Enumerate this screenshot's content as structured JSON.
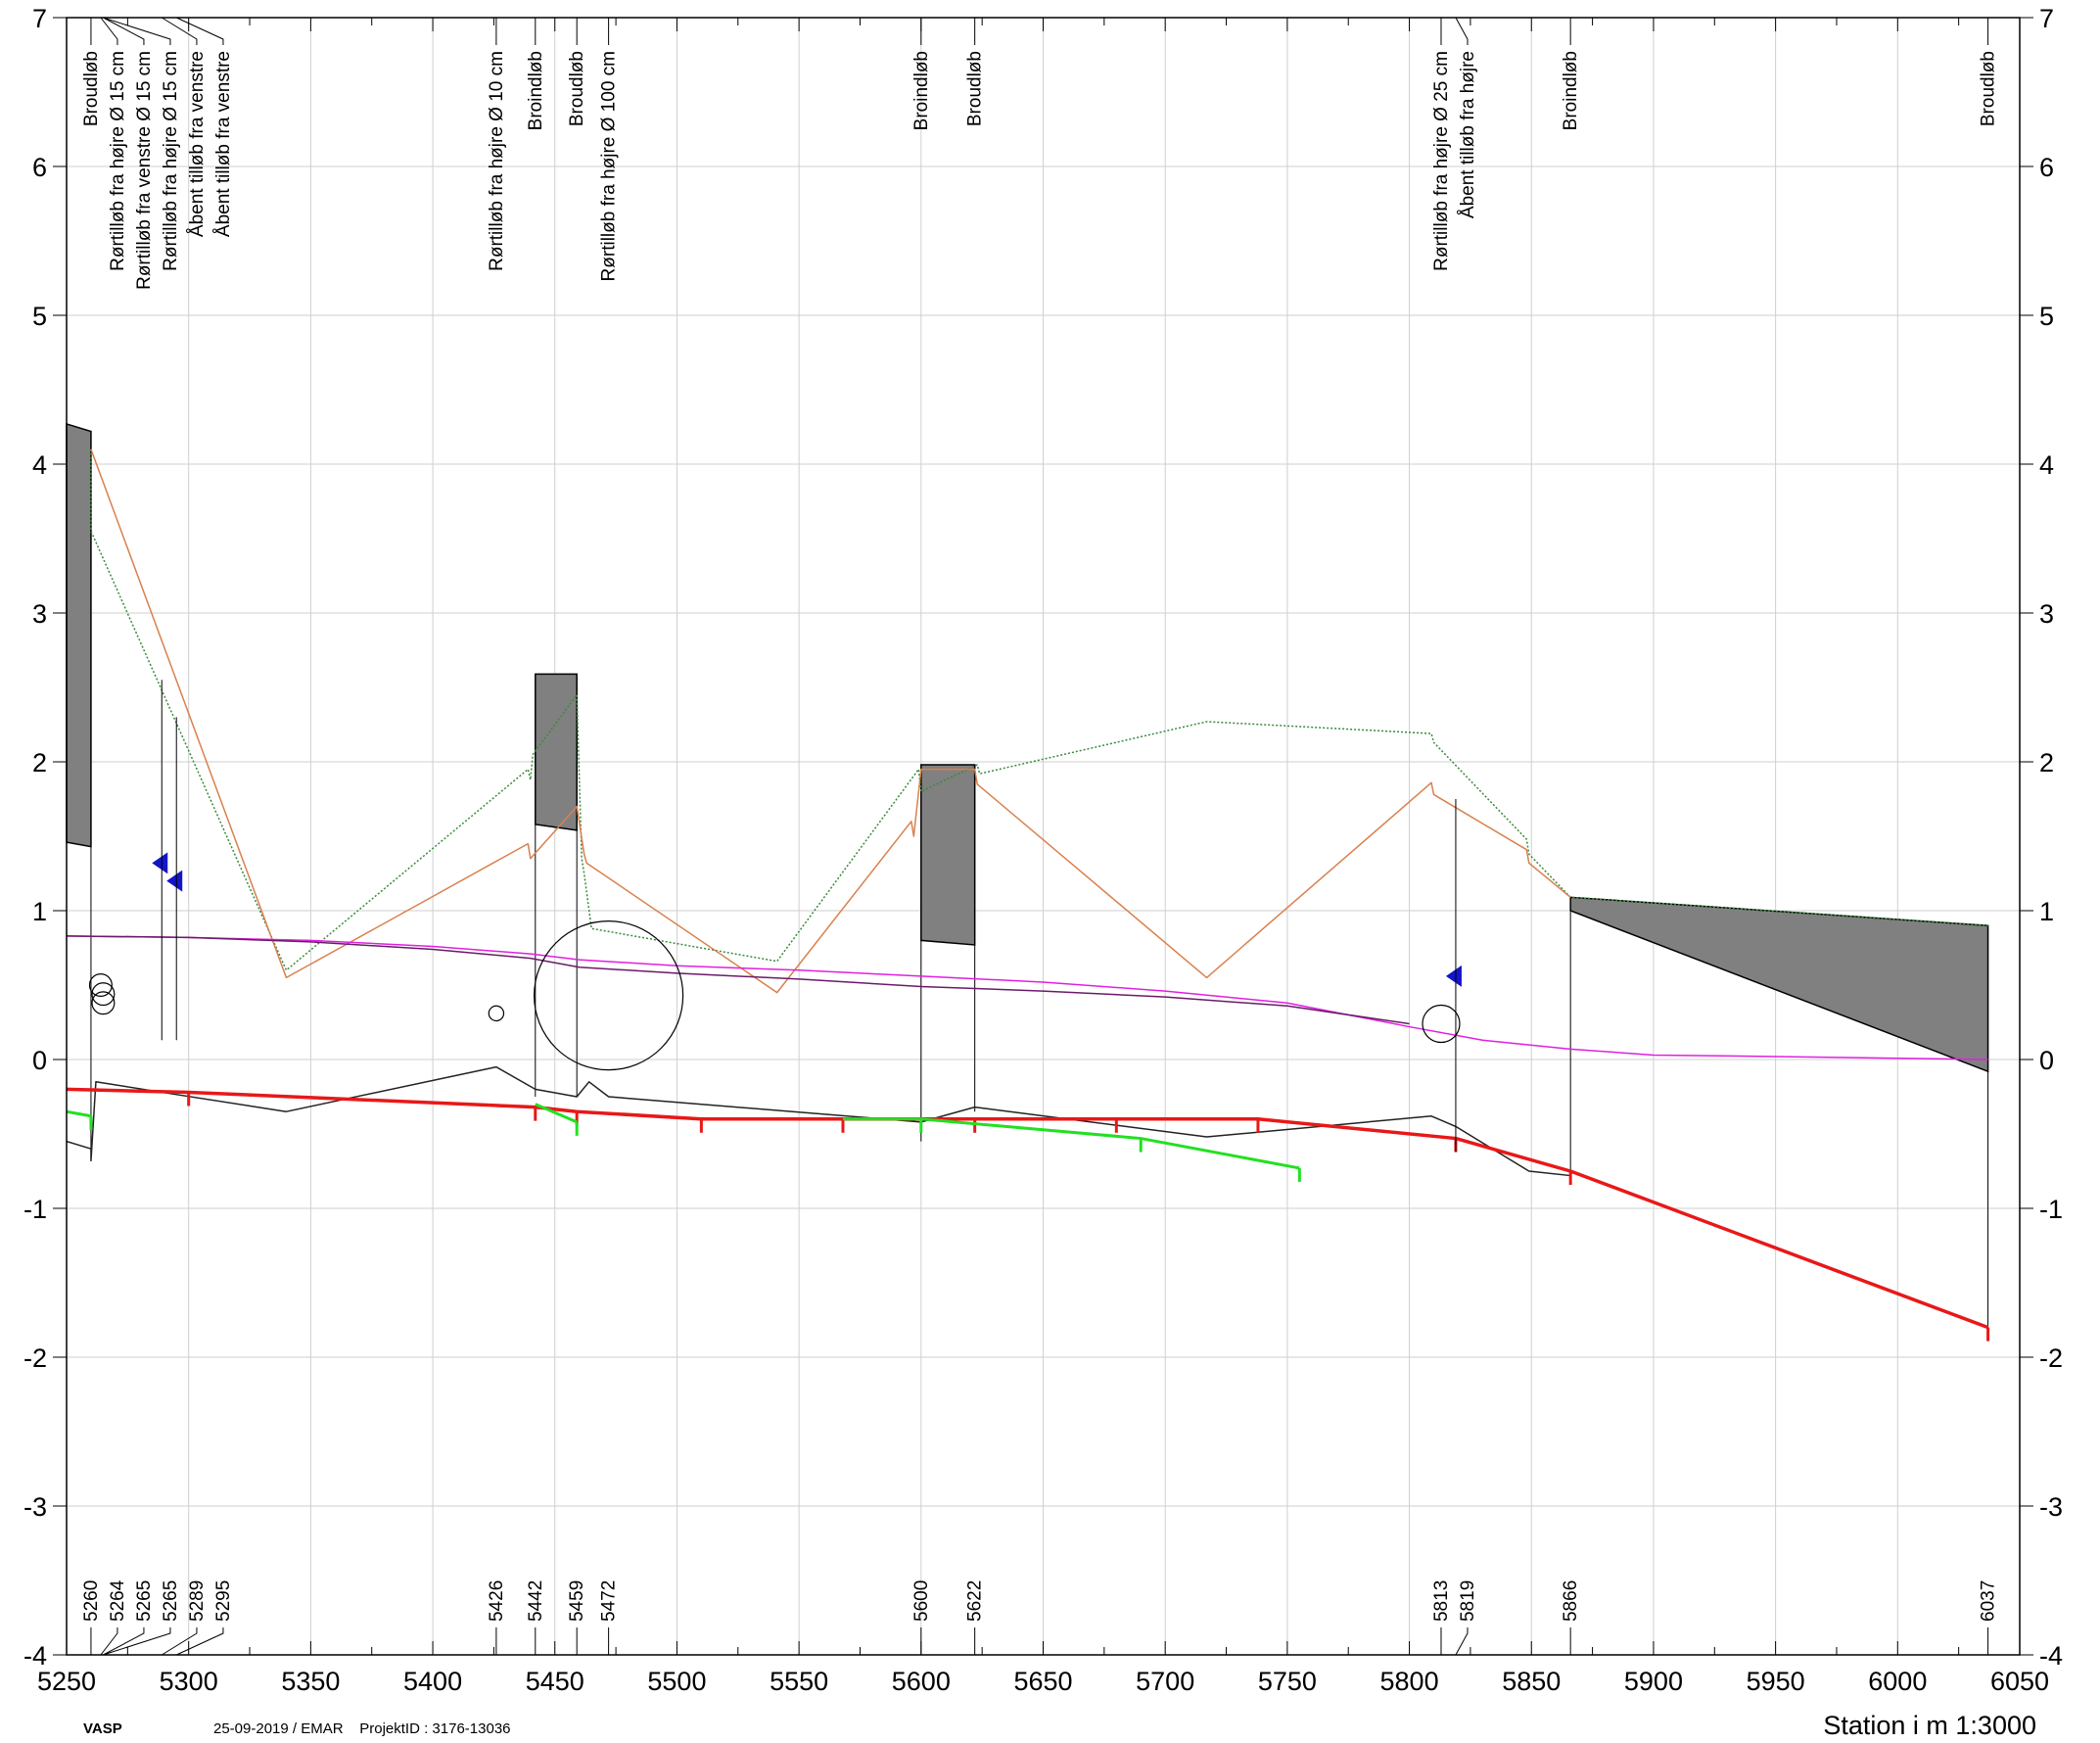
{
  "chart_data": {
    "type": "line",
    "x_range": [
      5250,
      6050
    ],
    "y_range": [
      -4,
      7
    ],
    "x_ticks": [
      5250,
      5300,
      5350,
      5400,
      5450,
      5500,
      5550,
      5600,
      5650,
      5700,
      5750,
      5800,
      5850,
      5900,
      5950,
      6000,
      6050
    ],
    "x_tick_labels": [
      "5250",
      "5300",
      "5350",
      "5400",
      "5450",
      "5500",
      "5550",
      "5600",
      "5650",
      "5700",
      "5750",
      "5800",
      "5850",
      "5900",
      "5950",
      "6000",
      "6050"
    ],
    "y_ticks": [
      -4,
      -3,
      -2,
      -1,
      0,
      1,
      2,
      3,
      4,
      5,
      6,
      7
    ],
    "y_tick_labels": [
      "-4",
      "-3",
      "-2",
      "-1",
      "0",
      "1",
      "2",
      "3",
      "4",
      "5",
      "6",
      "7"
    ],
    "xlabel": "Station i m  1:3000",
    "grid": true,
    "annotations_top": [
      {
        "x": 5260,
        "text": "Broudløb"
      },
      {
        "x": 5264,
        "text": "Rørtilløb fra højre Ø 15 cm"
      },
      {
        "x": 5265,
        "text": "Rørtilløb fra venstre Ø 15 cm"
      },
      {
        "x": 5265,
        "text": "Rørtilløb fra højre Ø 15 cm"
      },
      {
        "x": 5289,
        "text": "Åbent tilløb fra venstre"
      },
      {
        "x": 5295,
        "text": "Åbent tilløb fra venstre"
      },
      {
        "x": 5426,
        "text": "Rørtilløb fra højre Ø 10 cm"
      },
      {
        "x": 5442,
        "text": "Broindløb"
      },
      {
        "x": 5459,
        "text": "Broudløb"
      },
      {
        "x": 5472,
        "text": "Rørtilløb fra højre Ø 100 cm"
      },
      {
        "x": 5600,
        "text": "Broindløb"
      },
      {
        "x": 5622,
        "text": "Broudløb"
      },
      {
        "x": 5813,
        "text": "Rørtilløb fra højre Ø 25 cm"
      },
      {
        "x": 5819,
        "text": "Åbent tilløb fra højre"
      },
      {
        "x": 5866,
        "text": "Broindløb"
      },
      {
        "x": 6037,
        "text": "Broudløb"
      }
    ],
    "station_labels": [
      {
        "x": 5260,
        "text": "5260"
      },
      {
        "x": 5264,
        "text": "5264"
      },
      {
        "x": 5265,
        "text": "5265"
      },
      {
        "x": 5265,
        "text": "5265"
      },
      {
        "x": 5289,
        "text": "5289"
      },
      {
        "x": 5295,
        "text": "5295"
      },
      {
        "x": 5426,
        "text": "5426"
      },
      {
        "x": 5442,
        "text": "5442"
      },
      {
        "x": 5459,
        "text": "5459"
      },
      {
        "x": 5472,
        "text": "5472"
      },
      {
        "x": 5600,
        "text": "5600"
      },
      {
        "x": 5622,
        "text": "5622"
      },
      {
        "x": 5813,
        "text": "5813"
      },
      {
        "x": 5819,
        "text": "5819"
      },
      {
        "x": 5866,
        "text": "5866"
      },
      {
        "x": 6037,
        "text": "6037"
      }
    ],
    "bridges": [
      {
        "x1": 5250,
        "x2": 5260,
        "top1": 4.27,
        "top2": 4.22,
        "bot1": 1.46,
        "bot2": 1.43,
        "ground1": -0.55,
        "ground2": -0.6
      },
      {
        "x1": 5442,
        "x2": 5459,
        "top1": 2.59,
        "top2": 2.59,
        "bot1": 1.58,
        "bot2": 1.54,
        "ground1": -0.25,
        "ground2": -0.25
      },
      {
        "x1": 5600,
        "x2": 5622,
        "top1": 1.98,
        "top2": 1.98,
        "bot1": 0.8,
        "bot2": 0.77,
        "ground1": -0.55,
        "ground2": -0.35
      },
      {
        "x1": 5866,
        "x2": 6037,
        "top1": 1.09,
        "top2": 0.9,
        "bot1": 1.0,
        "bot2": -0.08,
        "ground1": -0.75,
        "ground2": -1.8
      }
    ],
    "series": [
      {
        "color": "#3a8a3a",
        "style": "dotted",
        "x": [
          5260,
          5260,
          5340,
          5439,
          5440,
          5441,
          5459,
          5461,
          5462,
          5465,
          5541,
          5599,
          5600,
          5623,
          5624,
          5717,
          5809,
          5810,
          5848,
          5849,
          5866,
          6037
        ],
        "y": [
          4.1,
          3.55,
          0.6,
          1.95,
          1.88,
          2.05,
          2.45,
          1.35,
          1.25,
          0.88,
          0.66,
          1.95,
          1.8,
          1.98,
          1.92,
          2.27,
          2.19,
          2.13,
          1.48,
          1.38,
          1.09,
          0.9
        ]
      },
      {
        "color": "#d9804d",
        "style": "solid",
        "x": [
          5260,
          5340,
          5439,
          5440,
          5459,
          5462,
          5463,
          5541,
          5596,
          5597,
          5600,
          5622,
          5623,
          5717,
          5809,
          5810,
          5848,
          5849,
          5866
        ],
        "y": [
          4.1,
          0.55,
          1.45,
          1.35,
          1.7,
          1.38,
          1.32,
          0.45,
          1.6,
          1.5,
          1.95,
          1.95,
          1.85,
          0.55,
          1.86,
          1.78,
          1.41,
          1.32,
          1.09
        ]
      },
      {
        "color": "#e020e0",
        "style": "solid",
        "x": [
          5250,
          5300,
          5350,
          5400,
          5440,
          5460,
          5500,
          5550,
          5600,
          5650,
          5700,
          5750,
          5800,
          5830,
          5866,
          5900,
          5950,
          6037
        ],
        "y": [
          0.83,
          0.82,
          0.8,
          0.76,
          0.71,
          0.67,
          0.63,
          0.6,
          0.56,
          0.52,
          0.46,
          0.38,
          0.22,
          0.13,
          0.07,
          0.03,
          0.02,
          0.0
        ]
      },
      {
        "color": "#6a1b6a",
        "style": "solid",
        "x": [
          5250,
          5300,
          5350,
          5400,
          5440,
          5460,
          5500,
          5550,
          5600,
          5650,
          5700,
          5750,
          5800
        ],
        "y": [
          0.83,
          0.82,
          0.79,
          0.74,
          0.68,
          0.62,
          0.58,
          0.54,
          0.49,
          0.46,
          0.42,
          0.36,
          0.24
        ]
      },
      {
        "color": "#222222",
        "style": "solid",
        "x": [
          5250,
          5260,
          5260,
          5262,
          5289,
          5340,
          5426,
          5442,
          5459,
          5464,
          5472,
          5600,
          5622,
          5717,
          5809,
          5819,
          5849,
          5866
        ],
        "y": [
          -0.55,
          -0.6,
          -0.68,
          -0.15,
          -0.22,
          -0.35,
          -0.05,
          -0.2,
          -0.25,
          -0.15,
          -0.25,
          -0.42,
          -0.32,
          -0.52,
          -0.38,
          -0.45,
          -0.75,
          -0.78
        ]
      },
      {
        "color": "#e81818",
        "style": "solid",
        "x": [
          5250,
          5300,
          5442,
          5459,
          5510,
          5568,
          5622,
          5680,
          5738,
          5819,
          5866,
          6037
        ],
        "y": [
          -0.2,
          -0.22,
          -0.32,
          -0.35,
          -0.4,
          -0.4,
          -0.4,
          -0.4,
          -0.4,
          -0.53,
          -0.75,
          -1.8
        ]
      },
      {
        "color": "#22e022",
        "style": "solid",
        "x": [
          5250,
          5260
        ],
        "y": [
          -0.35,
          -0.38
        ]
      },
      {
        "color": "#22e022",
        "style": "solid",
        "x": [
          5442,
          5459
        ],
        "y": [
          -0.3,
          -0.42
        ]
      },
      {
        "color": "#22e022",
        "style": "solid",
        "x": [
          5568,
          5600,
          5690,
          5755
        ],
        "y": [
          -0.4,
          -0.4,
          -0.53,
          -0.73
        ]
      }
    ],
    "pipes": [
      {
        "x": 5264,
        "y": 0.5,
        "d": 0.15
      },
      {
        "x": 5265,
        "y": 0.44,
        "d": 0.15
      },
      {
        "x": 5265,
        "y": 0.38,
        "d": 0.15
      },
      {
        "x": 5426,
        "y": 0.31,
        "d": 0.1
      },
      {
        "x": 5472,
        "y": 0.43,
        "d": 1.0
      },
      {
        "x": 5813,
        "y": 0.24,
        "d": 0.25
      }
    ],
    "markers": [
      {
        "x": 5289,
        "y": 1.32,
        "color": "#1414c8"
      },
      {
        "x": 5295,
        "y": 1.2,
        "color": "#1414c8"
      },
      {
        "x": 5819,
        "y": 0.56,
        "color": "#1414c8"
      }
    ]
  },
  "footer": {
    "app": "VASP",
    "meta": "25-09-2019 / EMAR    ProjektID : 3176-13036"
  }
}
